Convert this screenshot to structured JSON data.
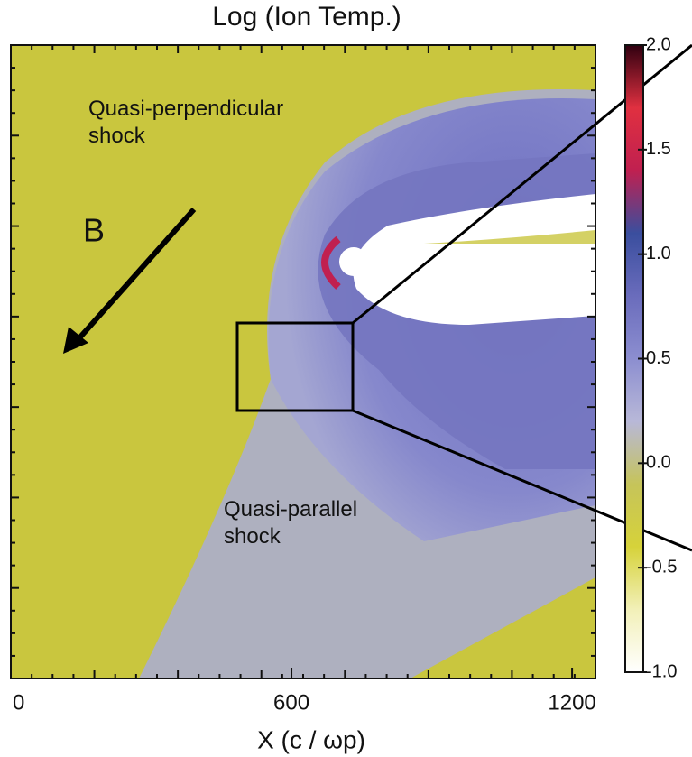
{
  "chart_data": {
    "type": "heatmap",
    "title": "Log (Ion Temp.)",
    "xlabel": "X (c / ωp)",
    "xlim": [
      0,
      1250
    ],
    "xticks": [
      0,
      600,
      1200
    ],
    "annotations": [
      "Quasi-perpendicular shock",
      "Quasi-parallel shock",
      "B"
    ],
    "colorbar": {
      "lim": [
        -1,
        2
      ],
      "ticks": [
        {
          "value": 2,
          "label": "2.0"
        },
        1.5,
        {
          "value": 1,
          "label": "1.0"
        },
        0.5,
        {
          "value": 0,
          "label": "0.0"
        },
        -0.5,
        {
          "value": -1,
          "label": "-1.0"
        }
      ],
      "colors": [
        "#ffffff",
        "#f2f0b8",
        "#d6d23a",
        "#c6c45a",
        "#b8b8d8",
        "#8c8ed0",
        "#6a6cbc",
        "#3a4e9e",
        "#c02050",
        "#e03040",
        "#300010"
      ]
    }
  }
}
